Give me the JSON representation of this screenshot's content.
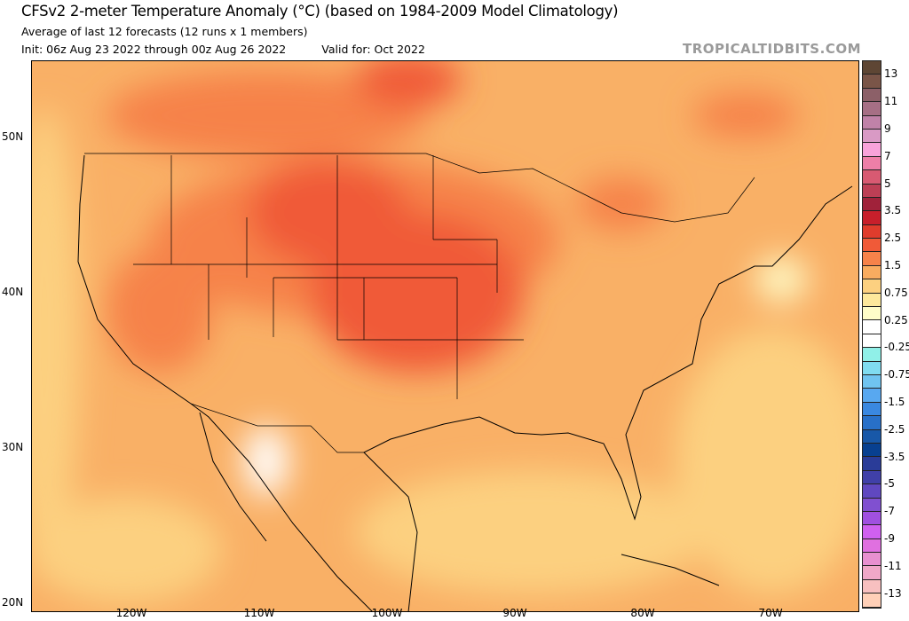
{
  "header": {
    "title": "CFSv2 2-meter Temperature Anomaly (°C) (based on 1984-2009 Model Climatology)",
    "subtitle": "Average of last 12 forecasts (12 runs x 1 members)",
    "init": "Init: 06z Aug 23 2022 through 00z Aug 26 2022",
    "valid": "Valid for: Oct 2022",
    "brand": "TROPICALTIDBITS.COM"
  },
  "axes": {
    "lat_labels": [
      "50N",
      "40N",
      "30N",
      "20N"
    ],
    "lon_labels": [
      "120W",
      "110W",
      "100W",
      "90W",
      "80W",
      "70W"
    ]
  },
  "colorbar": {
    "labels": [
      "13",
      "11",
      "9",
      "7",
      "5",
      "3.5",
      "2.5",
      "1.5",
      "0.75",
      "0.25",
      "-0.25",
      "-0.75",
      "-1.5",
      "-2.5",
      "-3.5",
      "-5",
      "-7",
      "-9",
      "-11",
      "-13"
    ],
    "colors": [
      "#5e4634",
      "#7a5548",
      "#8c6068",
      "#a66f85",
      "#c082a8",
      "#d99ac5",
      "#f8a3da",
      "#ee7fa8",
      "#d85a72",
      "#bd3f55",
      "#a0223a",
      "#c81f2b",
      "#e03c2c",
      "#f05a38",
      "#f6824a",
      "#f9ac60",
      "#fcd080",
      "#fde89c",
      "#fefcc8",
      "#ffffff",
      "#ffffff",
      "#90f0e8",
      "#80dcf0",
      "#70c4f0",
      "#58a8f0",
      "#3a88e0",
      "#2870c8",
      "#1858a8",
      "#084090",
      "#2a3c98",
      "#4040a8",
      "#6048c0",
      "#8050d0",
      "#a050e0",
      "#d060f0",
      "#e070e0",
      "#e890d0",
      "#f0a8c8",
      "#f8c0c0",
      "#ffd0b8"
    ]
  }
}
